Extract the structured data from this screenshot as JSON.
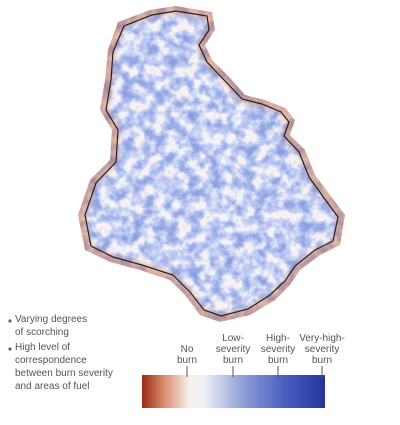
{
  "notes": [
    {
      "lines": [
        "Varying degrees",
        "of scorching"
      ]
    },
    {
      "lines": [
        "High level of",
        "correspondence",
        "between burn severity",
        "and areas of fuel"
      ]
    }
  ],
  "legend": {
    "labels": [
      {
        "lines": [
          "No",
          "burn"
        ]
      },
      {
        "lines": [
          "Low-",
          "severity",
          "burn"
        ]
      },
      {
        "lines": [
          "High-",
          "severity",
          "burn"
        ]
      },
      {
        "lines": [
          "Very-high-",
          "severity",
          "burn"
        ]
      }
    ]
  }
}
